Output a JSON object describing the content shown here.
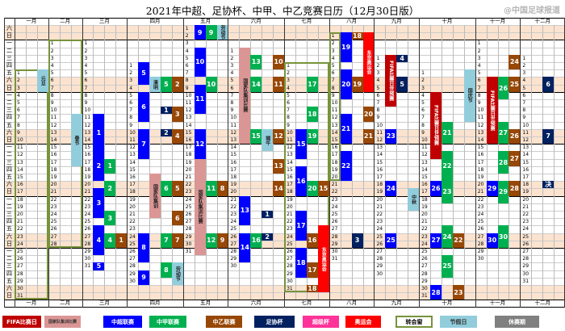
{
  "title": "2021年中超、足协杯、中甲、中乙竞赛日历（12月30日版）",
  "weekday_labels": [
    "六",
    "日",
    "一",
    "二",
    "三",
    "四",
    "五"
  ],
  "months": [
    "一月",
    "二月",
    "三月",
    "四月",
    "五月",
    "六月",
    "七月",
    "八月",
    "九月",
    "十月",
    "十一月",
    "十二月"
  ],
  "days_in_month": [
    31,
    28,
    31,
    30,
    31,
    30,
    31,
    31,
    30,
    31,
    30,
    31
  ],
  "colors": {
    "fifa": "#c00000",
    "nt": "#da9694",
    "csl": "#0000ff",
    "cl1": "#00b050",
    "cl2": "#974706",
    "fa": "#002060",
    "super": "#ff3399",
    "oly": "#ff0000",
    "window": "#77933c",
    "holiday": "#92cddc",
    "off": "#808080",
    "weekend": "#fbe3cf"
  },
  "events": [
    {
      "m": 1,
      "d1": 1,
      "d2": 31,
      "type": "window",
      "label": ""
    },
    {
      "m": 2,
      "d1": 1,
      "d2": 28,
      "type": "window",
      "label": ""
    },
    {
      "m": 7,
      "d1": 1,
      "d2": 31,
      "type": "window",
      "label": ""
    },
    {
      "m": 8,
      "d1": 1,
      "d2": 20,
      "type": "window",
      "label": ""
    },
    {
      "m": 1,
      "d1": 1,
      "d2": 3,
      "type": "holiday",
      "label": "元旦"
    },
    {
      "m": 2,
      "d1": 11,
      "d2": 17,
      "type": "holiday",
      "label": "春节"
    },
    {
      "m": 3,
      "d1": 11,
      "d2": 15,
      "type": "csl",
      "label": "1"
    },
    {
      "m": 3,
      "d1": 16,
      "d2": 19,
      "type": "csl",
      "label": "2"
    },
    {
      "m": 3,
      "d1": 21,
      "d2": 24,
      "type": "csl",
      "label": "3"
    },
    {
      "m": 3,
      "d1": 26,
      "d2": 29,
      "type": "csl",
      "label": "4"
    },
    {
      "m": 3,
      "d1": 31,
      "d2": 31,
      "type": "csl",
      "label": "5"
    },
    {
      "m": 3,
      "d1": 17,
      "d2": 18,
      "type": "cl1",
      "label": "1"
    },
    {
      "m": 3,
      "d1": 20,
      "d2": 21,
      "type": "cl1",
      "label": "2"
    },
    {
      "m": 3,
      "d1": 24,
      "d2": 25,
      "type": "cl1",
      "label": "3"
    },
    {
      "m": 3,
      "d1": 27,
      "d2": 28,
      "type": "cl1",
      "label": "4"
    },
    {
      "m": 3,
      "d1": 27,
      "d2": 28,
      "type": "cl2",
      "label": "1"
    },
    {
      "m": 4,
      "d1": 1,
      "d2": 3,
      "type": "csl",
      "label": "5"
    },
    {
      "m": 4,
      "d1": 5,
      "d2": 8,
      "type": "csl",
      "label": "6"
    },
    {
      "m": 4,
      "d1": 10,
      "d2": 13,
      "type": "csl",
      "label": "7"
    },
    {
      "m": 4,
      "d1": 24,
      "d2": 27,
      "type": "csl",
      "label": "8"
    },
    {
      "m": 4,
      "d1": 29,
      "d2": 30,
      "type": "csl",
      "label": "9"
    },
    {
      "m": 4,
      "d1": 3,
      "d2": 4,
      "type": "holiday",
      "label": "清明"
    },
    {
      "m": 4,
      "d1": 16,
      "d2": 21,
      "type": "nt",
      "label": "国家队集训"
    },
    {
      "m": 4,
      "d1": 7,
      "d2": 7,
      "type": "fa",
      "label": "1"
    },
    {
      "m": 4,
      "d1": 10,
      "d2": 10,
      "type": "fa",
      "label": "2"
    },
    {
      "m": 4,
      "d1": 3,
      "d2": 4,
      "type": "cl1",
      "label": "5"
    },
    {
      "m": 4,
      "d1": 17,
      "d2": 18,
      "type": "cl1",
      "label": "6"
    },
    {
      "m": 4,
      "d1": 24,
      "d2": 25,
      "type": "cl1",
      "label": "7"
    },
    {
      "m": 4,
      "d1": 28,
      "d2": 29,
      "type": "cl1",
      "label": "8"
    },
    {
      "m": 4,
      "d1": 3,
      "d2": 4,
      "type": "cl2",
      "label": "2"
    },
    {
      "m": 4,
      "d1": 7,
      "d2": 8,
      "type": "cl2",
      "label": "3"
    },
    {
      "m": 4,
      "d1": 10,
      "d2": 11,
      "type": "cl2",
      "label": "4"
    },
    {
      "m": 4,
      "d1": 17,
      "d2": 18,
      "type": "cl2",
      "label": "5"
    },
    {
      "m": 4,
      "d1": 21,
      "d2": 22,
      "type": "cl2",
      "label": "6"
    },
    {
      "m": 4,
      "d1": 24,
      "d2": 25,
      "type": "cl2",
      "label": "7"
    },
    {
      "m": 4,
      "d1": 28,
      "d2": 30,
      "type": "holiday",
      "label": "劳动节"
    },
    {
      "m": 5,
      "d1": 1,
      "d2": 2,
      "type": "csl",
      "label": "9"
    },
    {
      "m": 5,
      "d1": 4,
      "d2": 7,
      "type": "csl",
      "label": "10"
    },
    {
      "m": 5,
      "d1": 9,
      "d2": 12,
      "type": "csl",
      "label": "11"
    },
    {
      "m": 5,
      "d1": 15,
      "d2": 18,
      "type": "csl",
      "label": "12"
    },
    {
      "m": 5,
      "d1": 19,
      "d2": 31,
      "type": "nt",
      "label": "国家队集训比赛"
    },
    {
      "m": 5,
      "d1": 1,
      "d2": 2,
      "type": "cl1",
      "label": "9"
    },
    {
      "m": 5,
      "d1": 8,
      "d2": 9,
      "type": "cl1",
      "label": "10"
    },
    {
      "m": 5,
      "d1": 22,
      "d2": 23,
      "type": "cl1",
      "label": "11"
    },
    {
      "m": 5,
      "d1": 29,
      "d2": 30,
      "type": "cl1",
      "label": "12"
    },
    {
      "m": 5,
      "d1": 1,
      "d2": 2,
      "type": "holiday",
      "label": "劳动节"
    },
    {
      "m": 5,
      "d1": 22,
      "d2": 23,
      "type": "cl2",
      "label": "8"
    },
    {
      "m": 5,
      "d1": 29,
      "d2": 30,
      "type": "cl2",
      "label": "9"
    },
    {
      "m": 6,
      "d1": 1,
      "d2": 13,
      "type": "nt",
      "label": "国家队集训比赛"
    },
    {
      "m": 6,
      "d1": 21,
      "d2": 24,
      "type": "csl",
      "label": "13"
    },
    {
      "m": 6,
      "d1": 26,
      "d2": 29,
      "type": "csl",
      "label": "14"
    },
    {
      "m": 6,
      "d1": 2,
      "d2": 3,
      "type": "cl1",
      "label": "13"
    },
    {
      "m": 6,
      "d1": 5,
      "d2": 6,
      "type": "cl1",
      "label": "14"
    },
    {
      "m": 6,
      "d1": 12,
      "d2": 13,
      "type": "cl1",
      "label": "15"
    },
    {
      "m": 6,
      "d1": 26,
      "d2": 27,
      "type": "cl1",
      "label": "16"
    },
    {
      "m": 6,
      "d1": 12,
      "d2": 14,
      "type": "holiday",
      "label": "端午"
    },
    {
      "m": 6,
      "d1": 23,
      "d2": 23,
      "type": "fa",
      "label": "1"
    },
    {
      "m": 6,
      "d1": 26,
      "d2": 26,
      "type": "fa",
      "label": "2"
    },
    {
      "m": 6,
      "d1": 2,
      "d2": 3,
      "type": "cl2",
      "label": "10"
    },
    {
      "m": 6,
      "d1": 5,
      "d2": 6,
      "type": "cl2",
      "label": "11"
    },
    {
      "m": 6,
      "d1": 12,
      "d2": 13,
      "type": "cl2",
      "label": "12"
    },
    {
      "m": 6,
      "d1": 16,
      "d2": 17,
      "type": "cl2",
      "label": "13"
    },
    {
      "m": 6,
      "d1": 19,
      "d2": 20,
      "type": "cl2",
      "label": "14"
    },
    {
      "m": 7,
      "d1": 10,
      "d2": 13,
      "type": "csl",
      "label": "15"
    },
    {
      "m": 7,
      "d1": 15,
      "d2": 18,
      "type": "csl",
      "label": "16"
    },
    {
      "m": 7,
      "d1": 21,
      "d2": 24,
      "type": "csl",
      "label": "17"
    },
    {
      "m": 7,
      "d1": 26,
      "d2": 29,
      "type": "csl",
      "label": "18"
    },
    {
      "m": 7,
      "d1": 3,
      "d2": 4,
      "type": "cl1",
      "label": "17"
    },
    {
      "m": 7,
      "d1": 7,
      "d2": 8,
      "type": "cl1",
      "label": "18"
    },
    {
      "m": 7,
      "d1": 10,
      "d2": 11,
      "type": "cl1",
      "label": "19"
    },
    {
      "m": 7,
      "d1": 17,
      "d2": 18,
      "type": "cl1",
      "label": "20"
    },
    {
      "m": 7,
      "d1": 17,
      "d2": 18,
      "type": "cl2",
      "label": "15"
    },
    {
      "m": 7,
      "d1": 24,
      "d2": 25,
      "type": "cl2",
      "label": "16"
    },
    {
      "m": 7,
      "d1": 28,
      "d2": 29,
      "type": "cl2",
      "label": "17"
    },
    {
      "m": 7,
      "d1": 31,
      "d2": 31,
      "type": "cl2",
      "label": "18"
    },
    {
      "m": 7,
      "d1": 23,
      "d2": 31,
      "type": "oly",
      "label": "东京奥运会"
    },
    {
      "m": 8,
      "d1": 1,
      "d2": 4,
      "type": "csl",
      "label": "19"
    },
    {
      "m": 8,
      "d1": 6,
      "d2": 9,
      "type": "csl",
      "label": "20"
    },
    {
      "m": 8,
      "d1": 12,
      "d2": 15,
      "type": "csl",
      "label": "21"
    },
    {
      "m": 8,
      "d1": 17,
      "d2": 20,
      "type": "csl",
      "label": "22"
    },
    {
      "m": 8,
      "d1": 1,
      "d2": 1,
      "type": "cl2",
      "label": "18"
    },
    {
      "m": 8,
      "d1": 7,
      "d2": 8,
      "type": "cl2",
      "label": "19"
    },
    {
      "m": 8,
      "d1": 11,
      "d2": 12,
      "type": "cl2",
      "label": "20"
    },
    {
      "m": 8,
      "d1": 14,
      "d2": 15,
      "type": "cl2",
      "label": "21"
    },
    {
      "m": 8,
      "d1": 1,
      "d2": 8,
      "type": "oly",
      "label": "东京奥运会"
    },
    {
      "m": 8,
      "d1": 28,
      "d2": 29,
      "type": "fa",
      "label": "3"
    },
    {
      "m": 9,
      "d1": 1,
      "d2": 7,
      "type": "fifa",
      "label": "FIFA比赛日世预赛"
    },
    {
      "m": 9,
      "d1": 1,
      "d2": 1,
      "type": "fa",
      "label": "4"
    },
    {
      "m": 9,
      "d1": 4,
      "d2": 5,
      "type": "fa",
      "label": "5"
    },
    {
      "m": 9,
      "d1": 11,
      "d2": 12,
      "type": "csl",
      "label": "23"
    },
    {
      "m": 9,
      "d1": 18,
      "d2": 19,
      "type": "csl",
      "label": "24"
    },
    {
      "m": 9,
      "d1": 25,
      "d2": 26,
      "type": "csl",
      "label": "25"
    },
    {
      "m": 9,
      "d1": 19,
      "d2": 21,
      "type": "holiday",
      "label": "中秋"
    },
    {
      "m": 10,
      "d1": 1,
      "d2": 7,
      "type": "holiday",
      "label": "国庆节"
    },
    {
      "m": 10,
      "d1": 4,
      "d2": 12,
      "type": "fifa",
      "label": "FIFA比赛日世预赛"
    },
    {
      "m": 10,
      "d1": 8,
      "d2": 10,
      "type": "cl1",
      "label": "21"
    },
    {
      "m": 10,
      "d1": 12,
      "d2": 15,
      "type": "cl1",
      "label": "22"
    },
    {
      "m": 10,
      "d1": 16,
      "d2": 18,
      "type": "cl1",
      "label": "23"
    },
    {
      "m": 10,
      "d1": 22,
      "d2": 24,
      "type": "cl1",
      "label": "24"
    },
    {
      "m": 10,
      "d1": 26,
      "d2": 28,
      "type": "cl1",
      "label": "25"
    },
    {
      "m": 10,
      "d1": 16,
      "d2": 17,
      "type": "csl",
      "label": "26"
    },
    {
      "m": 10,
      "d1": 23,
      "d2": 24,
      "type": "csl",
      "label": "27"
    },
    {
      "m": 10,
      "d1": 30,
      "d2": 31,
      "type": "csl",
      "label": "28"
    },
    {
      "m": 10,
      "d1": 23,
      "d2": 24,
      "type": "cl2",
      "label": "22"
    },
    {
      "m": 10,
      "d1": 30,
      "d2": 31,
      "type": "cl2",
      "label": "23"
    },
    {
      "m": 11,
      "d1": 6,
      "d2": 14,
      "type": "fifa",
      "label": "FIFA比赛日世预赛"
    },
    {
      "m": 11,
      "d1": 6,
      "d2": 8,
      "type": "cl1",
      "label": "26"
    },
    {
      "m": 11,
      "d1": 12,
      "d2": 14,
      "type": "cl1",
      "label": "27"
    },
    {
      "m": 11,
      "d1": 16,
      "d2": 18,
      "type": "cl1",
      "label": "28"
    },
    {
      "m": 11,
      "d1": 20,
      "d2": 22,
      "type": "cl1",
      "label": "29"
    },
    {
      "m": 11,
      "d1": 26,
      "d2": 28,
      "type": "cl1",
      "label": "30"
    },
    {
      "m": 11,
      "d1": 20,
      "d2": 21,
      "type": "csl",
      "label": "29"
    },
    {
      "m": 11,
      "d1": 27,
      "d2": 28,
      "type": "csl",
      "label": "30"
    },
    {
      "m": 11,
      "d1": 3,
      "d2": 4,
      "type": "cl2",
      "label": "24"
    },
    {
      "m": 11,
      "d1": 6,
      "d2": 7,
      "type": "cl2",
      "label": "25"
    },
    {
      "m": 11,
      "d1": 13,
      "d2": 14,
      "type": "cl2",
      "label": "26"
    },
    {
      "m": 11,
      "d1": 16,
      "d2": 17,
      "type": "cl2",
      "label": "27"
    },
    {
      "m": 11,
      "d1": 20,
      "d2": 21,
      "type": "cl2",
      "label": "28"
    },
    {
      "m": 12,
      "d1": 4,
      "d2": 5,
      "type": "fa",
      "label": "6"
    },
    {
      "m": 12,
      "d1": 11,
      "d2": 12,
      "type": "fa",
      "label": "7"
    },
    {
      "m": 12,
      "d1": 18,
      "d2": 18,
      "type": "fa",
      "label": "决"
    }
  ],
  "legend": [
    {
      "type": "fifa",
      "label": "FIFA比赛日"
    },
    {
      "type": "nt",
      "label": "国家队集训比赛"
    },
    {
      "type": "csl",
      "label": "中超联赛"
    },
    {
      "type": "cl1",
      "label": "中甲联赛"
    },
    {
      "type": "cl2",
      "label": "中乙联赛"
    },
    {
      "type": "fa",
      "label": "足协杯"
    },
    {
      "type": "super",
      "label": "超级杯"
    },
    {
      "type": "oly",
      "label": "奥运会"
    },
    {
      "type": "window",
      "label": "转会窗"
    },
    {
      "type": "holiday",
      "label": "节假日"
    },
    {
      "type": "off",
      "label": "休赛期"
    }
  ],
  "watermark": "@中国足球报道"
}
